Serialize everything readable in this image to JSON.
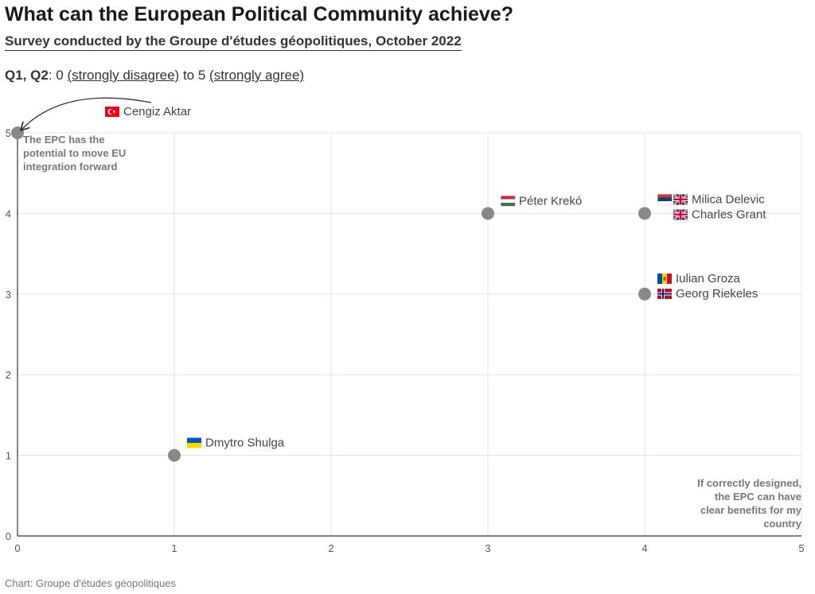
{
  "header": {
    "title": "What can the European Political Community achieve?",
    "subtitle": "Survey conducted by the Groupe d'études géopolitiques, October 2022",
    "scale_q": "Q1, Q2",
    "scale_sep": ": 0 ",
    "scale_low": "(strongly disagree)",
    "scale_mid": " to 5 ",
    "scale_high": "(strongly agree)"
  },
  "footer": {
    "source": "Chart: Groupe d'études géopolitiques"
  },
  "chart_data": {
    "type": "scatter",
    "xlim": [
      0,
      5
    ],
    "ylim": [
      0,
      5
    ],
    "x_ticks": [
      "0",
      "1",
      "2",
      "3",
      "4",
      "5"
    ],
    "y_ticks": [
      "0",
      "1",
      "2",
      "3",
      "4",
      "5"
    ],
    "grid": true,
    "point_color": "#888888",
    "points": [
      {
        "x": 0,
        "y": 5,
        "labels": [
          {
            "text": "Cengiz Aktar",
            "flags": [
              "TR"
            ]
          }
        ]
      },
      {
        "x": 1,
        "y": 1,
        "labels": [
          {
            "text": "Dmytro Shulga",
            "flags": [
              "UA"
            ]
          }
        ]
      },
      {
        "x": 3,
        "y": 4,
        "labels": [
          {
            "text": "Péter Krekó",
            "flags": [
              "HU"
            ]
          }
        ]
      },
      {
        "x": 4,
        "y": 4,
        "labels": [
          {
            "text": "Milica Delevic",
            "flags": [
              "RS",
              "GB"
            ]
          },
          {
            "text": "Charles Grant",
            "flags": [
              "GB"
            ]
          }
        ]
      },
      {
        "x": 4,
        "y": 3,
        "labels": [
          {
            "text": "Iulian Groza",
            "flags": [
              "MD"
            ]
          },
          {
            "text": "Georg Riekeles",
            "flags": [
              "NO"
            ]
          }
        ]
      }
    ],
    "annotations": [
      {
        "lines": [
          "The EPC has the",
          "potential to move EU",
          "integration forward"
        ],
        "position": "top-left"
      },
      {
        "lines": [
          "If correctly designed,",
          "the EPC can have",
          "clear benefits for my",
          "country"
        ],
        "position": "bottom-right"
      }
    ]
  }
}
